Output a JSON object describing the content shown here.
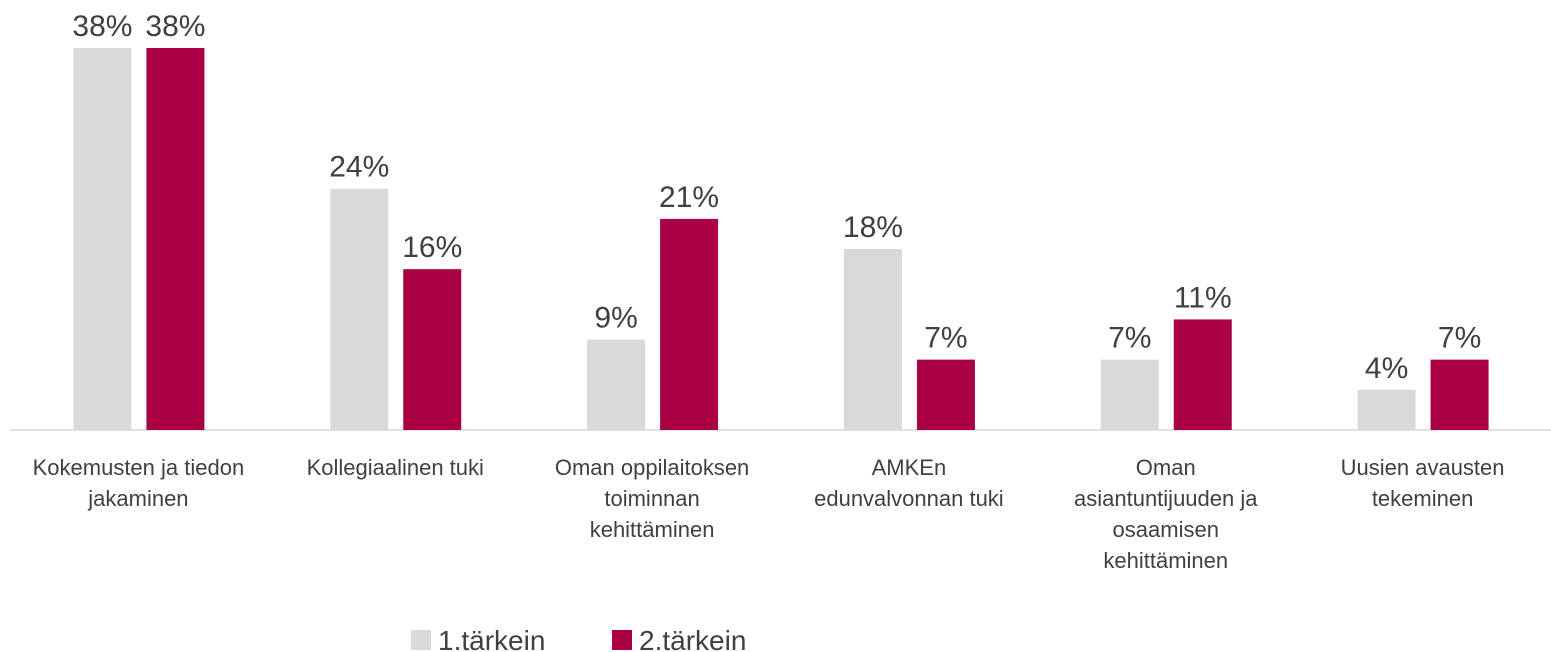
{
  "chart_data": {
    "type": "bar",
    "categories": [
      "Kokemusten ja tiedon jakaminen",
      "Kollegiaalinen tuki",
      "Oman oppilaitoksen toiminnan kehittäminen",
      "AMKEn edunvalvonnan tuki",
      "Oman asiantuntijuuden ja osaamisen kehittäminen",
      "Uusien avausten tekeminen"
    ],
    "series": [
      {
        "name": "1.tärkein",
        "color": "#d9d9d9",
        "values": [
          38,
          24,
          9,
          18,
          7,
          4
        ],
        "value_labels": [
          "38%",
          "24%",
          "9%",
          "18%",
          "7%",
          "4%"
        ]
      },
      {
        "name": "2.tärkein",
        "color": "#aa0044",
        "values": [
          38,
          16,
          21,
          7,
          11,
          7
        ],
        "value_labels": [
          "38%",
          "16%",
          "21%",
          "7%",
          "11%",
          "7%"
        ]
      }
    ],
    "legend": "bottom"
  }
}
